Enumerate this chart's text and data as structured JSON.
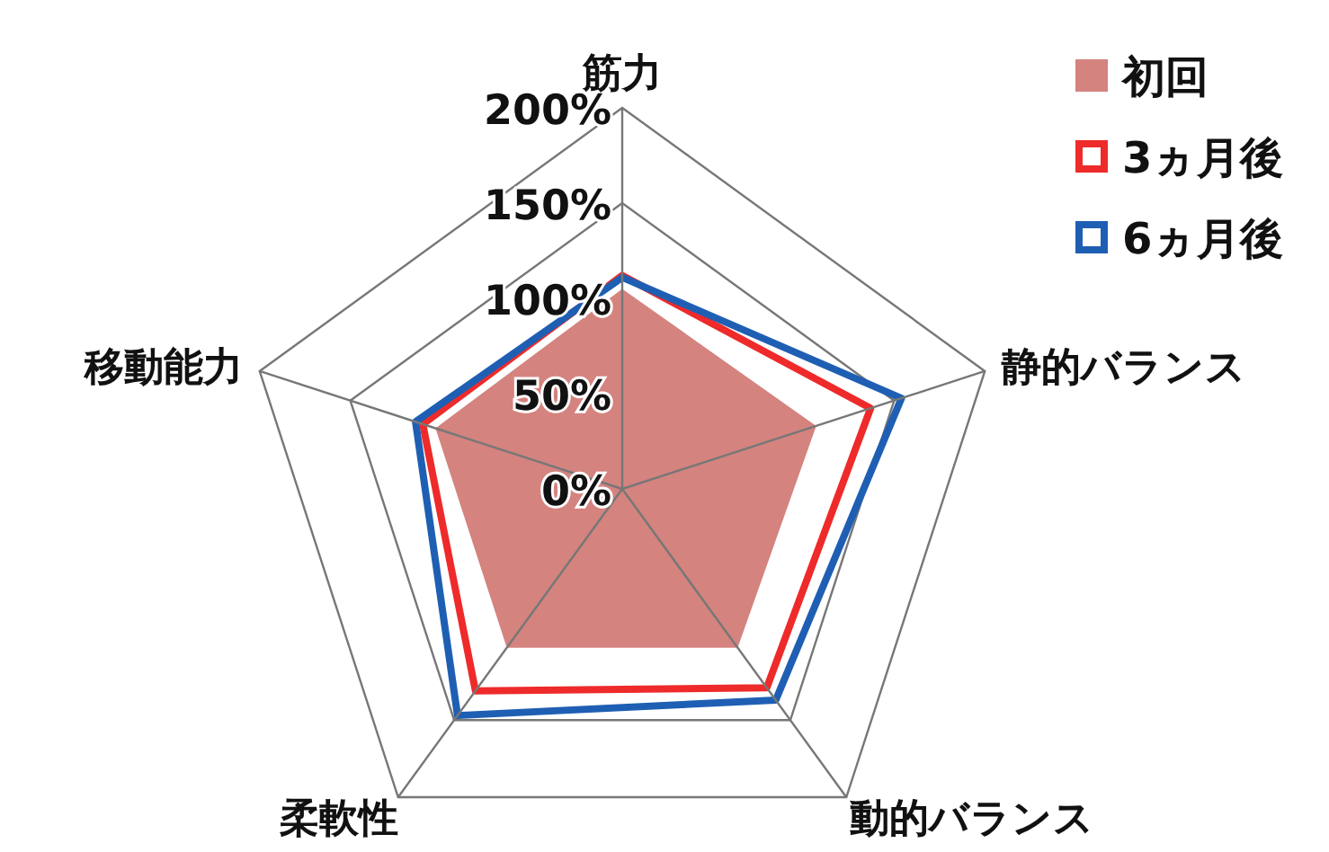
{
  "chart_data": {
    "type": "radar",
    "categories": [
      "筋力",
      "静的バランス",
      "動的バランス",
      "柔軟性",
      "移動能力"
    ],
    "ylim": [
      0,
      200
    ],
    "yticks": [
      {
        "value": 0,
        "label": "0%"
      },
      {
        "value": 50,
        "label": "50%"
      },
      {
        "value": 100,
        "label": "100%"
      },
      {
        "value": 150,
        "label": "150%"
      },
      {
        "value": 200,
        "label": "200%"
      }
    ],
    "grid": true,
    "legend": "top right",
    "series": [
      {
        "name": "初回",
        "type": "area",
        "color": "#d4837f",
        "values": [
          105,
          107,
          103,
          103,
          103
        ]
      },
      {
        "name": "3ヵ月後",
        "color": "#ee2a2a",
        "values": [
          112,
          137,
          129,
          131,
          110
        ]
      },
      {
        "name": "6ヵ月後",
        "color": "#1f5fb3",
        "values": [
          111,
          154,
          137,
          147,
          114
        ]
      }
    ]
  }
}
